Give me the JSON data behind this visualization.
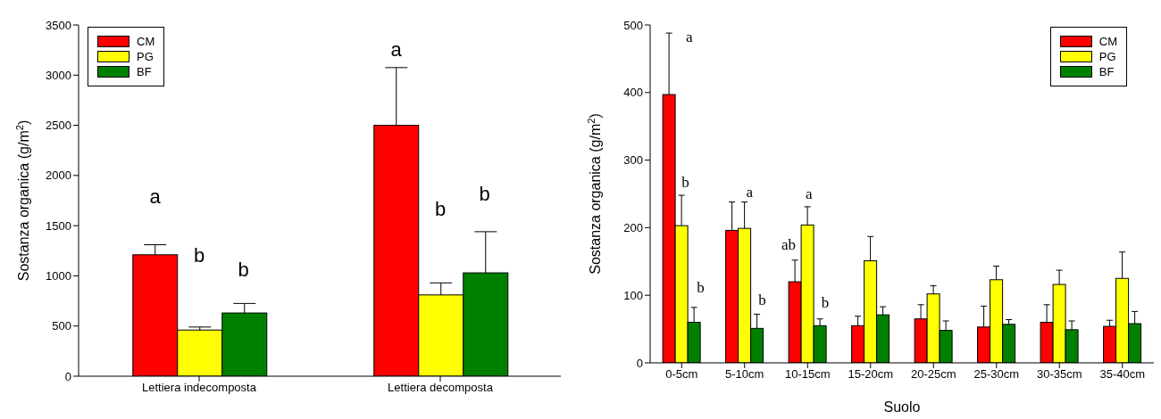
{
  "chart_data": [
    {
      "type": "bar",
      "ylabel": "Sostanza organica (g/m$^{2}$)",
      "categories": [
        "Lettiera indecomposta",
        "Lettiera decomposta"
      ],
      "series": [
        {
          "name": "CM",
          "color": "#ff0000",
          "values": [
            1210,
            2500
          ],
          "errors": [
            [
              1210,
              1310
            ],
            [
              2500,
              3075
            ]
          ]
        },
        {
          "name": "PG",
          "color": "#ffff00",
          "values": [
            460,
            810
          ],
          "errors": [
            [
              460,
              490
            ],
            [
              810,
              930
            ]
          ]
        },
        {
          "name": "BF",
          "color": "#008000",
          "values": [
            630,
            1030
          ],
          "errors": [
            [
              630,
              725
            ],
            [
              1030,
              1440
            ]
          ]
        }
      ],
      "ylim": [
        0,
        3500
      ],
      "yticks": [
        0,
        500,
        1000,
        1500,
        2000,
        2500,
        3000,
        3500
      ],
      "legend": "top left",
      "annotations": [
        "a",
        "b",
        "b",
        "a",
        "b",
        "b"
      ]
    },
    {
      "type": "bar",
      "xlabel": "Suolo",
      "ylabel": "Sostanza organica (g/m$^{2}$)",
      "categories": [
        "0-5cm",
        "5-10cm",
        "10-15cm",
        "15-20cm",
        "20-25cm",
        "25-30cm",
        "30-35cm",
        "35-40cm"
      ],
      "series": [
        {
          "name": "CM",
          "color": "#ff0000",
          "values": [
            397,
            196,
            120,
            55,
            65,
            53,
            60,
            54
          ],
          "errors": [
            [
              397,
              488
            ],
            [
              196,
              238
            ],
            [
              120,
              152
            ],
            [
              55,
              69
            ],
            [
              65,
              86
            ],
            [
              53,
              84
            ],
            [
              60,
              86
            ],
            [
              54,
              63
            ]
          ]
        },
        {
          "name": "PG",
          "color": "#ffff00",
          "values": [
            203,
            199,
            204,
            151,
            102,
            123,
            116,
            125
          ],
          "errors": [
            [
              203,
              248
            ],
            [
              199,
              238
            ],
            [
              204,
              231
            ],
            [
              151,
              187
            ],
            [
              102,
              114
            ],
            [
              123,
              143
            ],
            [
              116,
              137
            ],
            [
              125,
              164
            ]
          ]
        },
        {
          "name": "BF",
          "color": "#008000",
          "values": [
            60,
            51,
            55,
            71,
            48,
            57,
            49,
            58
          ],
          "errors": [
            [
              60,
              82
            ],
            [
              51,
              72
            ],
            [
              55,
              65
            ],
            [
              71,
              83
            ],
            [
              48,
              62
            ],
            [
              57,
              64
            ],
            [
              49,
              62
            ],
            [
              58,
              76
            ]
          ]
        }
      ],
      "ylim": [
        0,
        500
      ],
      "yticks": [
        0,
        100,
        200,
        300,
        400,
        500
      ],
      "legend": "top right",
      "annotations": [
        "a",
        "b",
        "b",
        "a",
        "b",
        "ab",
        "a",
        "b"
      ]
    }
  ]
}
